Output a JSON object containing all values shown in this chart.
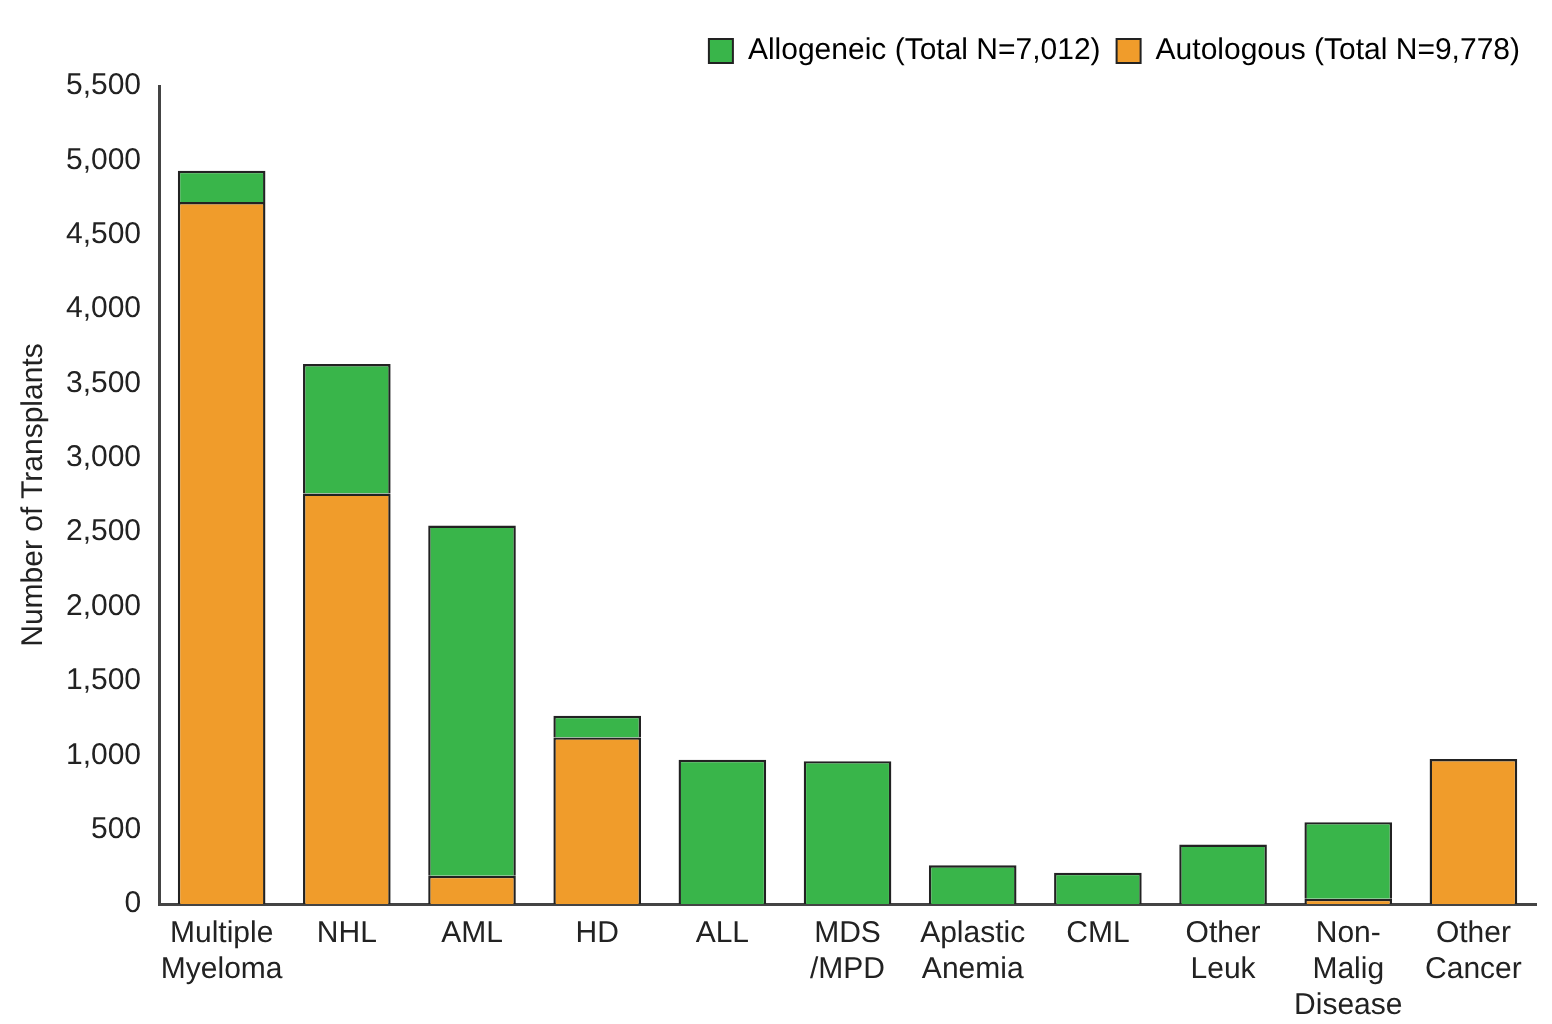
{
  "chart_data": {
    "type": "bar",
    "stacked": true,
    "ylabel": "Number of Transplants",
    "categories": [
      "Multiple Myeloma",
      "NHL",
      "AML",
      "HD",
      "ALL",
      "MDS /MPD",
      "Aplastic Anemia",
      "CML",
      "Other Leuk",
      "Non- Malig Disease",
      "Other Cancer"
    ],
    "series": [
      {
        "name": "Autologous (Total N=9,778)",
        "color": "#f09c2b",
        "values": [
          4720,
          2760,
          190,
          1120,
          null,
          null,
          null,
          null,
          null,
          35,
          975
        ]
      },
      {
        "name": "Allogeneic (Total N=7,012)",
        "color": "#39b54a",
        "values": [
          210,
          870,
          2355,
          145,
          970,
          960,
          260,
          210,
          400,
          515,
          null
        ]
      }
    ],
    "ylim": [
      0,
      5500
    ],
    "yticks": [
      0,
      500,
      {
        "value": 1000,
        "label": "1,000"
      },
      {
        "value": 1500,
        "label": "1,500"
      },
      {
        "value": 2000,
        "label": "2,000"
      },
      {
        "value": 2500,
        "label": "2,500"
      },
      {
        "value": 3000,
        "label": "3,000"
      },
      {
        "value": 3500,
        "label": "3,500"
      },
      {
        "value": 4000,
        "label": "4,000"
      },
      {
        "value": 4500,
        "label": "4,500"
      },
      {
        "value": 5000,
        "label": "5,000"
      },
      {
        "value": 5500,
        "label": "5,500"
      }
    ],
    "grid": false,
    "legend": "top right"
  }
}
